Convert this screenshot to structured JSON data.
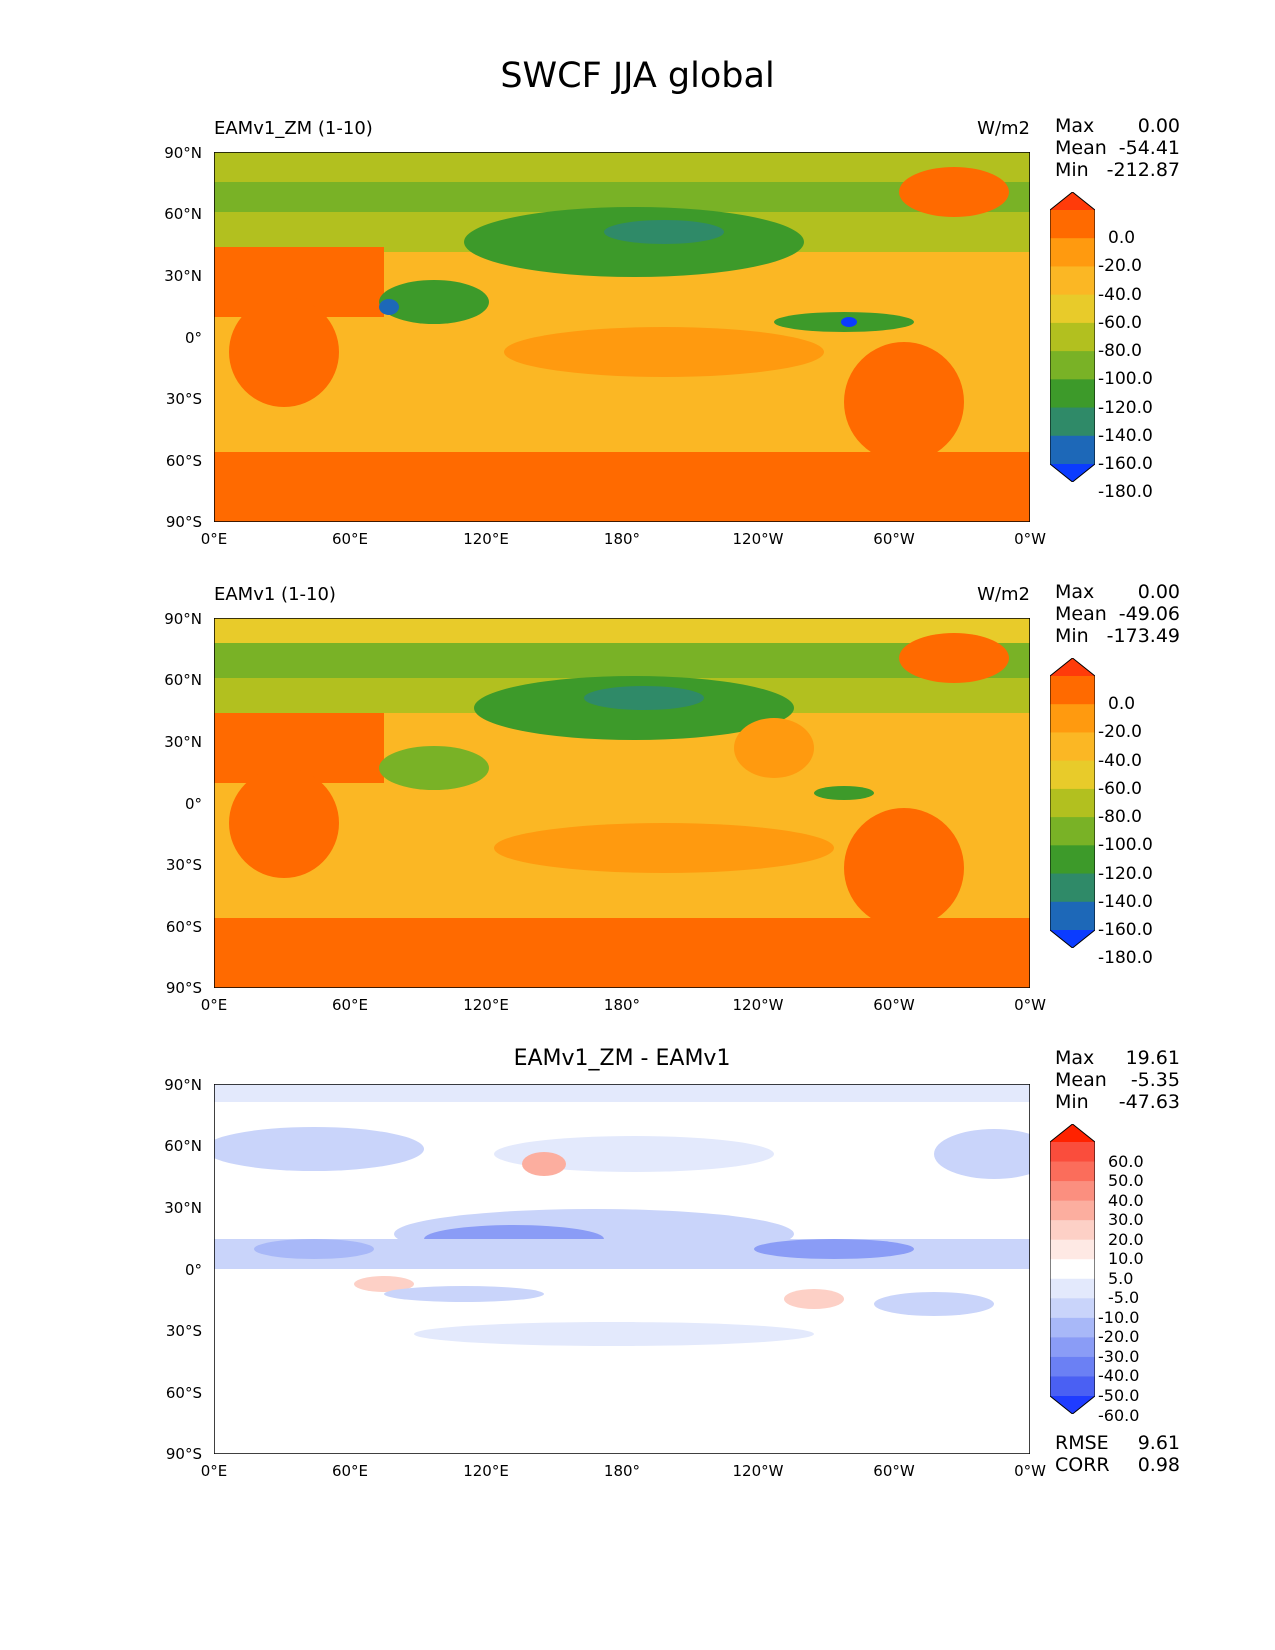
{
  "figure": {
    "title": "SWCF JJA global"
  },
  "panels": [
    {
      "title": "EAMv1_ZM (1-10)",
      "units": "W/m2",
      "stats": {
        "max_label": "Max",
        "max": "0.00",
        "mean_label": "Mean",
        "mean": "-54.41",
        "min_label": "Min",
        "min": "-212.87"
      },
      "colorbar": {
        "labels": [
          "0.0",
          "-20.0",
          "-40.0",
          "-60.0",
          "-80.0",
          "-100.0",
          "-120.0",
          "-140.0",
          "-160.0",
          "-180.0"
        ],
        "colors": [
          "#ff3b0a",
          "#ff6a00",
          "#ff9a0f",
          "#fbb724",
          "#e8cb2a",
          "#b2c01f",
          "#79b226",
          "#3d9a2a",
          "#2f8a68",
          "#1d68b8",
          "#0b3cff"
        ]
      }
    },
    {
      "title": "EAMv1 (1-10)",
      "units": "W/m2",
      "stats": {
        "max_label": "Max",
        "max": "0.00",
        "mean_label": "Mean",
        "mean": "-49.06",
        "min_label": "Min",
        "min": "-173.49"
      },
      "colorbar": {
        "labels": [
          "0.0",
          "-20.0",
          "-40.0",
          "-60.0",
          "-80.0",
          "-100.0",
          "-120.0",
          "-140.0",
          "-160.0",
          "-180.0"
        ],
        "colors": [
          "#ff3b0a",
          "#ff6a00",
          "#ff9a0f",
          "#fbb724",
          "#e8cb2a",
          "#b2c01f",
          "#79b226",
          "#3d9a2a",
          "#2f8a68",
          "#1d68b8",
          "#0b3cff"
        ]
      }
    },
    {
      "title": "EAMv1_ZM - EAMv1",
      "units": "",
      "stats": {
        "max_label": "Max",
        "max": "19.61",
        "mean_label": "Mean",
        "mean": "-5.35",
        "min_label": "Min",
        "min": "-47.63"
      },
      "colorbar": {
        "labels": [
          "60.0",
          "50.0",
          "40.0",
          "30.0",
          "20.0",
          "10.0",
          "5.0",
          "-5.0",
          "-10.0",
          "-20.0",
          "-30.0",
          "-40.0",
          "-50.0",
          "-60.0"
        ],
        "colors": [
          "#ff2200",
          "#fa4d3c",
          "#fb6d5b",
          "#fb8f7f",
          "#fcae9f",
          "#fdd0c6",
          "#fee9e4",
          "#ffffff",
          "#e3e9fc",
          "#c9d4fa",
          "#a8b8f8",
          "#8a9cf6",
          "#6b80f4",
          "#4a60f3",
          "#1f3cff"
        ]
      },
      "metrics": {
        "rmse_label": "RMSE",
        "rmse": "9.61",
        "corr_label": "CORR",
        "corr": "0.98"
      }
    }
  ],
  "axes": {
    "y_ticks": [
      "90°N",
      "60°N",
      "30°N",
      "0°",
      "30°S",
      "60°S",
      "90°S"
    ],
    "x_ticks": [
      "0°E",
      "60°E",
      "120°E",
      "180°",
      "120°W",
      "60°W",
      "0°W"
    ]
  }
}
